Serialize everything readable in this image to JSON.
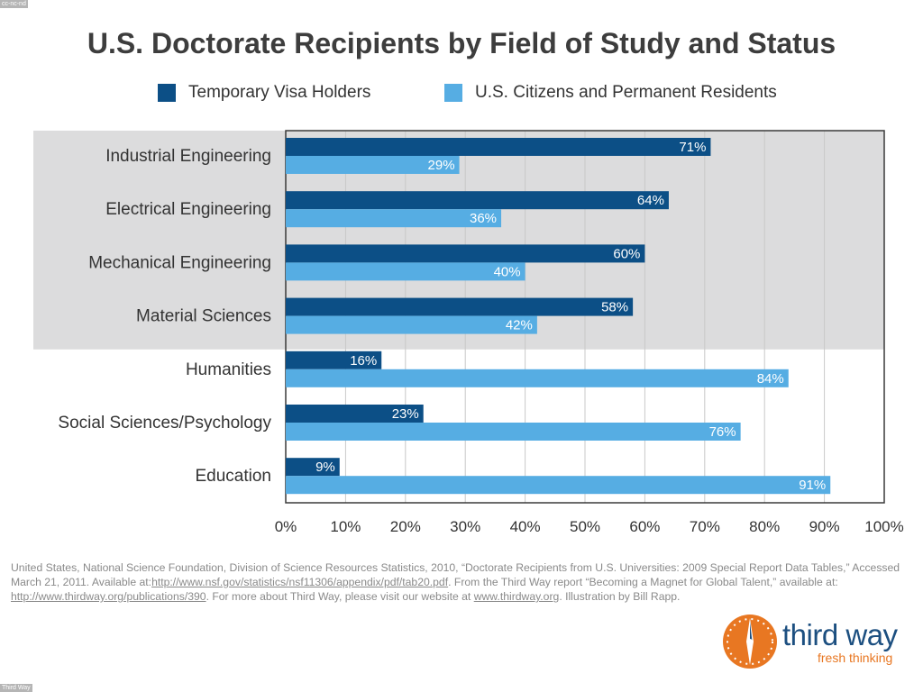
{
  "badges": {
    "top": "cc-nc-nd",
    "bottom": "Third Way"
  },
  "title": "U.S. Doctorate Recipients by Field of Study and Status",
  "colors": {
    "visa": "#0c4f86",
    "citizens": "#56ade3",
    "highlight_band": "#dcdcdd",
    "grid": "#c8c8c8",
    "logo_orange": "#e87722",
    "logo_blue": "#1c4f80"
  },
  "chart_data": {
    "type": "bar",
    "orientation": "horizontal",
    "categories": [
      "Industrial Engineering",
      "Electrical Engineering",
      "Mechanical Engineering",
      "Material Sciences",
      "Humanities",
      "Social Sciences/Psychology",
      "Education"
    ],
    "series": [
      {
        "name": "Temporary Visa Holders",
        "values": [
          71,
          64,
          60,
          58,
          16,
          23,
          9
        ],
        "labels": [
          "71%",
          "64%",
          "60%",
          "58%",
          "16%",
          "23%",
          "9%"
        ]
      },
      {
        "name": "U.S. Citizens and Permanent Residents",
        "values": [
          29,
          36,
          40,
          42,
          84,
          76,
          91
        ],
        "labels": [
          "29%",
          "36%",
          "40%",
          "42%",
          "84%",
          "76%",
          "91%"
        ]
      }
    ],
    "xlim": [
      0,
      100
    ],
    "xticks": [
      "0%",
      "10%",
      "20%",
      "30%",
      "40%",
      "50%",
      "60%",
      "70%",
      "80%",
      "90%",
      "100%"
    ],
    "grid": true,
    "legend_position": "top",
    "highlighted_categories": 4
  },
  "source": {
    "text1": "United States, National Science Foundation, Division of Science Resources Statistics, 2010, “Doctorate Recipients from U.S. Universities: 2009 Special Report Data Tables,” Accessed March 21, 2011. Available at:",
    "link1": "http://www.nsf.gov/statistics/nsf11306/appendix/pdf/tab20.pdf",
    "text2": ". From the Third Way report “Becoming a Magnet for Global Talent,” available at: ",
    "link2": "http://www.thirdway.org/publications/390",
    "text3": ". For more about Third Way, please visit our website at ",
    "link3": "www.thirdway.org",
    "text4": ". Illustration by Bill Rapp."
  },
  "logo": {
    "name": "third way",
    "tagline": "fresh thinking"
  }
}
